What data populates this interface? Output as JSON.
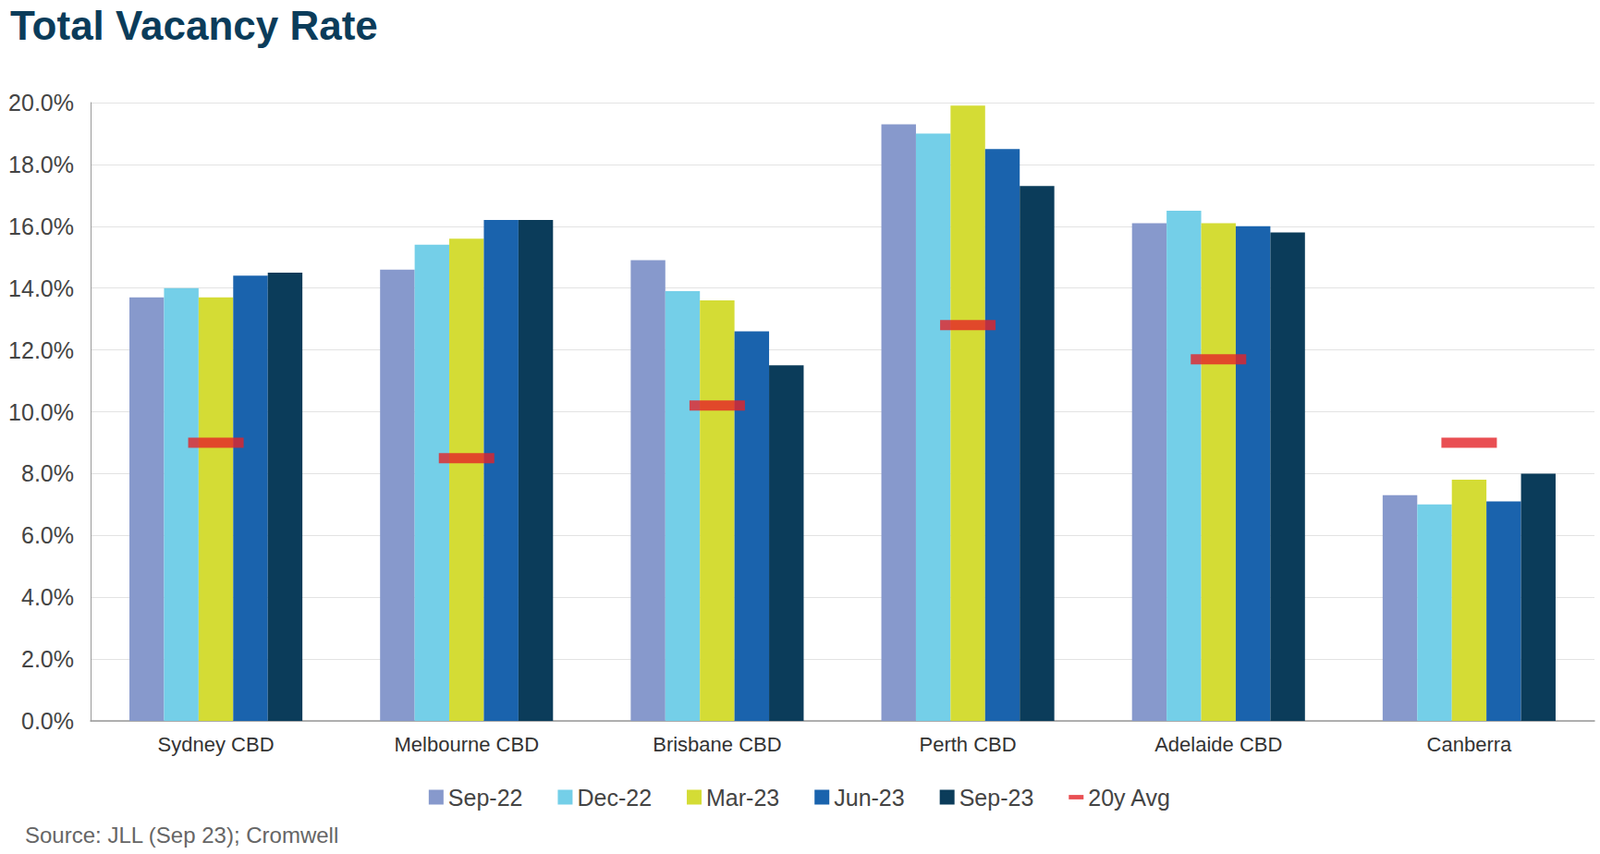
{
  "chart_data": {
    "type": "bar",
    "title": "Total Vacancy Rate",
    "annotations": [
      "Source: JLL (Sep 23); Cromwell"
    ],
    "categories": [
      "Sydney CBD",
      "Melbourne CBD",
      "Brisbane CBD",
      "Perth CBD",
      "Adelaide CBD",
      "Canberra"
    ],
    "series": [
      {
        "name": "Sep-22",
        "color": "#8799cc",
        "values": [
          13.7,
          14.6,
          14.9,
          19.3,
          16.1,
          7.3
        ]
      },
      {
        "name": "Dec-22",
        "color": "#74cfe8",
        "values": [
          14.0,
          15.4,
          13.9,
          19.0,
          16.5,
          7.0
        ]
      },
      {
        "name": "Mar-23",
        "color": "#d4dc35",
        "values": [
          13.7,
          15.6,
          13.6,
          19.9,
          16.1,
          7.8
        ]
      },
      {
        "name": "Jun-23",
        "color": "#1a63ad",
        "values": [
          14.4,
          16.2,
          12.6,
          18.5,
          16.0,
          7.1
        ]
      },
      {
        "name": "Sep-23",
        "color": "#0b3c5a",
        "values": [
          14.5,
          16.2,
          11.5,
          17.3,
          15.8,
          8.0
        ]
      },
      {
        "name": "20y Avg",
        "color": "#e32328",
        "type": "scatter",
        "marker": "dash",
        "values": [
          9.0,
          8.5,
          10.2,
          12.8,
          11.7,
          9.0
        ]
      }
    ],
    "ylim": [
      0,
      20
    ],
    "yticks": [
      {
        "value": 0,
        "label": "0.0%"
      },
      {
        "value": 2,
        "label": "2.0%"
      },
      {
        "value": 4,
        "label": "4.0%"
      },
      {
        "value": 6,
        "label": "6.0%"
      },
      {
        "value": 8,
        "label": "8.0%"
      },
      {
        "value": 10,
        "label": "10.0%"
      },
      {
        "value": 12,
        "label": "12.0%"
      },
      {
        "value": 14,
        "label": "14.0%"
      },
      {
        "value": 16,
        "label": "16.0%"
      },
      {
        "value": 18,
        "label": "18.0%"
      },
      {
        "value": 20,
        "label": "20.0%"
      }
    ],
    "grid": true,
    "legend": "bottom"
  }
}
